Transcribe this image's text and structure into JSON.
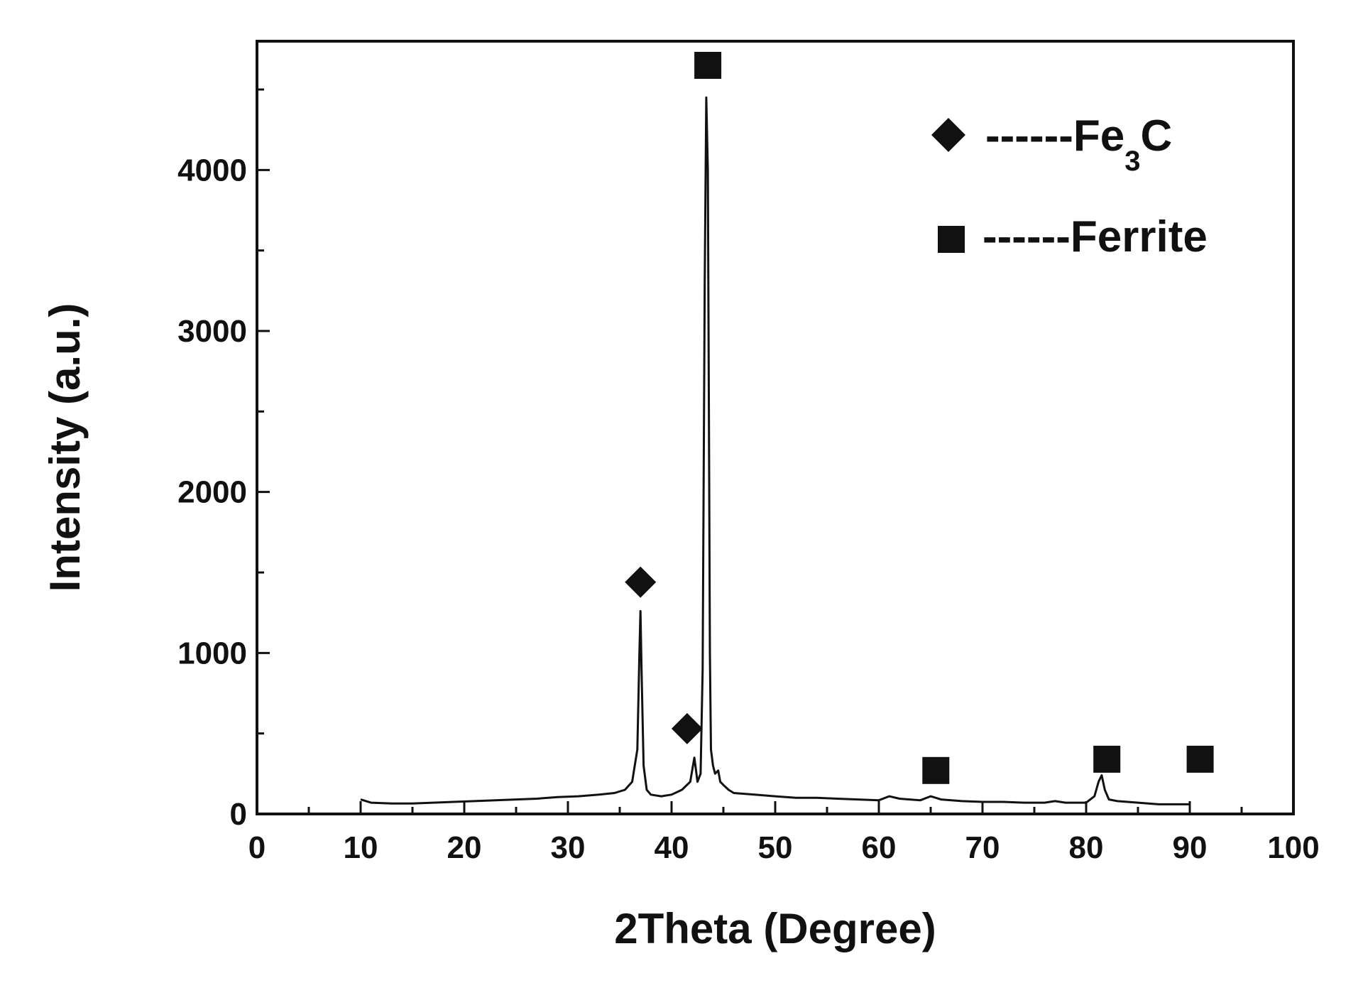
{
  "chart_data": {
    "type": "line",
    "xlabel": "2Theta (Degree)",
    "ylabel": "Intensity (a.u.)",
    "xlim": [
      0,
      100
    ],
    "ylim": [
      0,
      4800
    ],
    "x_ticks": [
      0,
      10,
      20,
      30,
      40,
      50,
      60,
      70,
      80,
      90,
      100
    ],
    "y_ticks": [
      0,
      1000,
      2000,
      3000,
      4000
    ],
    "grid": false,
    "legend_position": "top-right",
    "legend": [
      {
        "marker": "diamond",
        "base": "------Fe",
        "sub": "3",
        "tail": "C"
      },
      {
        "marker": "square",
        "base": "------Ferrite",
        "sub": "",
        "tail": ""
      }
    ],
    "series": [
      {
        "x": [
          10,
          11,
          13,
          15,
          17,
          19,
          21,
          23,
          25,
          27,
          29,
          31,
          33,
          34.5,
          35.5,
          36.2,
          36.7,
          36.9,
          37.0,
          37.1,
          37.3,
          37.6,
          38,
          39,
          40,
          41,
          41.8,
          42.2,
          42.5,
          42.8,
          43.0,
          43.2,
          43.35,
          43.5,
          43.6,
          43.7,
          43.8,
          44.0,
          44.2,
          44.5,
          44.7,
          45.0,
          45.5,
          46,
          48,
          50,
          52,
          54,
          56,
          58,
          60,
          61,
          62,
          64,
          65,
          66,
          68,
          70,
          72,
          74,
          76,
          77,
          78,
          80,
          80.8,
          81.2,
          81.5,
          81.8,
          82.2,
          83,
          85,
          87,
          90
        ],
        "y": [
          90,
          70,
          65,
          65,
          70,
          75,
          80,
          85,
          90,
          95,
          105,
          110,
          120,
          130,
          150,
          200,
          400,
          1000,
          1260,
          900,
          300,
          150,
          120,
          110,
          120,
          150,
          200,
          350,
          200,
          250,
          900,
          3300,
          4450,
          4000,
          2500,
          1000,
          400,
          300,
          250,
          270,
          200,
          180,
          150,
          130,
          120,
          110,
          100,
          100,
          95,
          90,
          85,
          110,
          95,
          85,
          110,
          90,
          80,
          75,
          75,
          70,
          70,
          80,
          70,
          70,
          110,
          200,
          240,
          150,
          90,
          80,
          70,
          60,
          60
        ]
      }
    ],
    "peak_markers": [
      {
        "x": 37,
        "y": 1440,
        "symbol": "diamond"
      },
      {
        "x": 41.5,
        "y": 530,
        "symbol": "diamond"
      },
      {
        "x": 43.5,
        "y": 4650,
        "symbol": "square"
      },
      {
        "x": 65.5,
        "y": 270,
        "symbol": "square"
      },
      {
        "x": 82,
        "y": 340,
        "symbol": "square"
      },
      {
        "x": 91,
        "y": 340,
        "symbol": "square"
      }
    ]
  }
}
